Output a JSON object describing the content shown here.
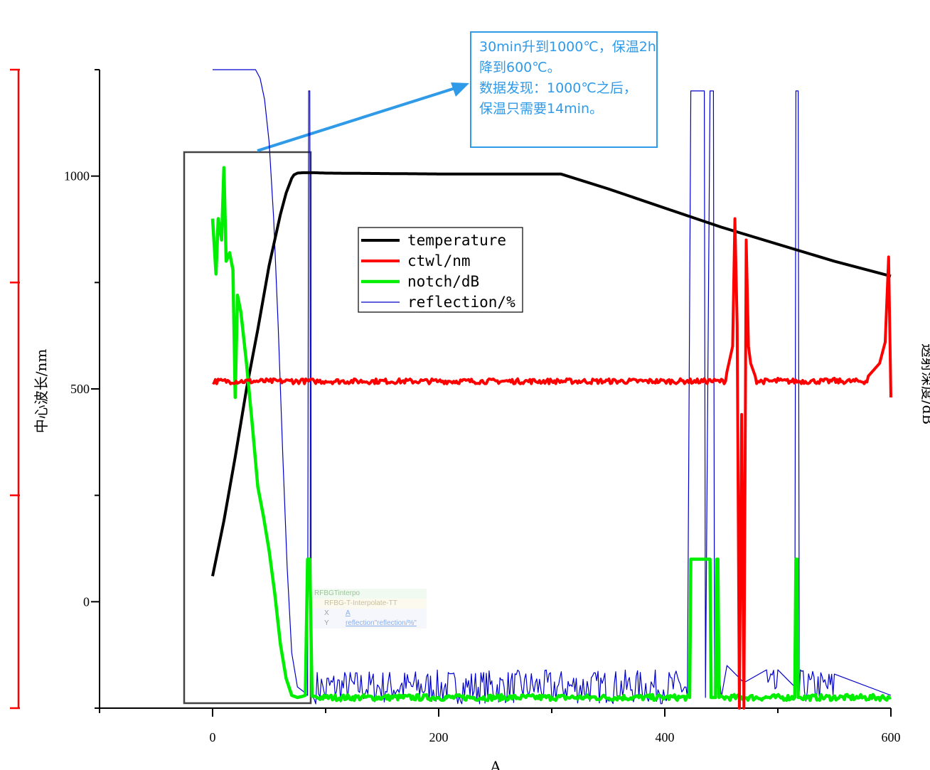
{
  "chart_data": {
    "type": "line",
    "xlabel": "A",
    "y1label": "中心波长/nm",
    "y2label": "透射深度/dB",
    "xlim": [
      -100,
      600
    ],
    "ylim": [
      -250,
      1250
    ],
    "x_ticks": [
      0,
      200,
      400,
      600
    ],
    "y_ticks": [
      0,
      500,
      1000
    ],
    "grid": false,
    "legend_placement": "center-top",
    "series": [
      {
        "name": "temperature",
        "color": "#000000",
        "x": [
          0,
          10,
          20,
          30,
          40,
          50,
          60,
          65,
          70,
          72,
          75,
          80,
          90,
          100,
          150,
          200,
          250,
          300,
          308,
          350,
          400,
          450,
          500,
          550,
          600
        ],
        "y": [
          60,
          190,
          340,
          500,
          640,
          790,
          910,
          960,
          995,
          1003,
          1007,
          1008,
          1008,
          1007,
          1006,
          1005,
          1005,
          1005,
          1005,
          970,
          925,
          880,
          840,
          800,
          765
        ]
      },
      {
        "name": "ctwl/nm",
        "color": "#ff0000",
        "x": [
          0,
          50,
          70,
          80,
          90,
          100,
          200,
          300,
          400,
          420,
          440,
          455,
          460,
          462,
          464,
          466,
          468,
          470,
          472,
          474,
          476,
          480,
          500,
          550,
          580,
          590,
          595,
          598,
          600
        ],
        "y": [
          515,
          518,
          522,
          523,
          518,
          518,
          518,
          518,
          518,
          520,
          522,
          540,
          600,
          900,
          650,
          -250,
          440,
          -250,
          850,
          600,
          560,
          530,
          525,
          525,
          530,
          560,
          610,
          810,
          480
        ]
      },
      {
        "name": "notch/dB",
        "color": "#00ee00",
        "x": [
          0,
          3,
          5,
          8,
          10,
          12,
          15,
          18,
          20,
          22,
          25,
          30,
          35,
          40,
          45,
          50,
          55,
          60,
          65,
          70,
          75,
          80,
          82,
          84,
          86,
          88,
          90,
          100,
          200,
          300,
          400,
          422,
          423,
          440,
          441,
          445,
          446,
          447,
          448,
          515,
          516,
          517,
          518,
          519,
          520,
          600
        ],
        "y": [
          900,
          770,
          900,
          850,
          1020,
          800,
          820,
          780,
          480,
          720,
          680,
          560,
          420,
          270,
          200,
          120,
          20,
          -100,
          -180,
          -220,
          -225,
          -222,
          -220,
          100,
          100,
          -222,
          -222,
          -225,
          -225,
          -225,
          -225,
          -225,
          100,
          100,
          -225,
          -225,
          100,
          100,
          -225,
          -225,
          100,
          100,
          -225,
          -225,
          -225,
          -225
        ]
      },
      {
        "name": "reflection/%",
        "color": "#0000cc",
        "x": [
          0,
          20,
          38,
          42,
          46,
          50,
          54,
          58,
          62,
          66,
          70,
          75,
          80,
          84,
          85,
          86,
          87,
          88,
          90,
          100,
          200,
          300,
          400,
          420,
          423,
          424,
          430,
          435,
          436,
          440,
          441,
          443,
          444,
          445,
          450,
          455,
          470,
          490,
          500,
          515,
          516,
          518,
          519,
          520,
          550,
          600
        ],
        "y": [
          1250,
          1250,
          1250,
          1230,
          1180,
          1080,
          900,
          650,
          350,
          80,
          -120,
          -200,
          -210,
          -220,
          1200,
          1200,
          -220,
          -220,
          -230,
          -225,
          -225,
          -225,
          -225,
          -225,
          1200,
          1200,
          1200,
          1200,
          -225,
          1200,
          1200,
          1200,
          -225,
          -225,
          -225,
          -150,
          -190,
          -160,
          -160,
          -200,
          1200,
          1200,
          -210,
          -160,
          -170,
          -220
        ]
      }
    ],
    "noise": {
      "reflection_band": [
        -240,
        -160
      ],
      "notch_band": [
        -232,
        -218
      ],
      "ctwl_band": [
        512,
        524
      ]
    }
  },
  "annotation": {
    "lines": [
      "30min升到1000℃，保温2h",
      "降到600℃。",
      "数据发现：1000℃之后，",
      "保温只需要14min。"
    ],
    "color": "#2f9ae8"
  },
  "tooltip": {
    "title": "RFBGTinterpo",
    "sheet": "RFBG-T-Interpolate-TT",
    "x_key": "X",
    "x_val": "A",
    "y_key": "Y",
    "y_val": "reflection\"reflection/%\""
  }
}
